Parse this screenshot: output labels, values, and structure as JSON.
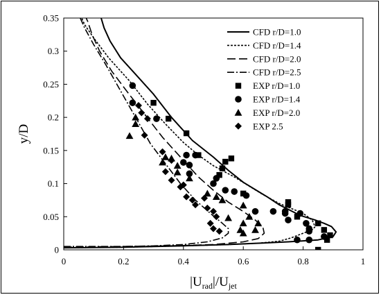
{
  "chart_data": {
    "type": "scatter",
    "title": "",
    "xlabel": {
      "base": "|U",
      "sub1": "rad",
      "mid": "|/U",
      "sub2": "jet"
    },
    "ylabel": "y/D",
    "xlim": [
      0,
      1
    ],
    "ylim": [
      0,
      0.35
    ],
    "x_ticks": [
      "0",
      "0.2",
      "0.4",
      "0.6",
      "0.8",
      "1"
    ],
    "y_ticks": [
      "0",
      "0.05",
      "0.1",
      "0.15",
      "0.2",
      "0.25",
      "0.3",
      "0.35"
    ],
    "grid": false,
    "legend_position": "top-right",
    "series": [
      {
        "name": "CFD r/D=1.0",
        "kind": "line",
        "dash": "solid",
        "points": [
          [
            0,
            0.003
          ],
          [
            0.2,
            0.004
          ],
          [
            0.4,
            0.006
          ],
          [
            0.55,
            0.008
          ],
          [
            0.65,
            0.01
          ],
          [
            0.75,
            0.012
          ],
          [
            0.85,
            0.015
          ],
          [
            0.9,
            0.02
          ],
          [
            0.91,
            0.027
          ],
          [
            0.895,
            0.035
          ],
          [
            0.87,
            0.04
          ],
          [
            0.84,
            0.045
          ],
          [
            0.79,
            0.052
          ],
          [
            0.72,
            0.068
          ],
          [
            0.68,
            0.08
          ],
          [
            0.6,
            0.102
          ],
          [
            0.55,
            0.12
          ],
          [
            0.5,
            0.14
          ],
          [
            0.43,
            0.165
          ],
          [
            0.36,
            0.2
          ],
          [
            0.3,
            0.235
          ],
          [
            0.24,
            0.265
          ],
          [
            0.19,
            0.29
          ],
          [
            0.155,
            0.315
          ],
          [
            0.135,
            0.335
          ],
          [
            0.125,
            0.35
          ]
        ]
      },
      {
        "name": "CFD r/D=1.4",
        "kind": "line",
        "dash": "short",
        "points": [
          [
            0,
            0.003
          ],
          [
            0.2,
            0.004
          ],
          [
            0.4,
            0.006
          ],
          [
            0.55,
            0.008
          ],
          [
            0.65,
            0.01
          ],
          [
            0.72,
            0.013
          ],
          [
            0.76,
            0.018
          ],
          [
            0.8,
            0.025
          ],
          [
            0.83,
            0.03
          ],
          [
            0.84,
            0.035
          ],
          [
            0.83,
            0.045
          ],
          [
            0.8,
            0.055
          ],
          [
            0.72,
            0.07
          ],
          [
            0.66,
            0.085
          ],
          [
            0.57,
            0.11
          ],
          [
            0.5,
            0.127
          ],
          [
            0.45,
            0.143
          ],
          [
            0.4,
            0.162
          ],
          [
            0.34,
            0.19
          ],
          [
            0.28,
            0.22
          ],
          [
            0.22,
            0.255
          ],
          [
            0.15,
            0.29
          ],
          [
            0.1,
            0.32
          ],
          [
            0.07,
            0.34
          ],
          [
            0.06,
            0.35
          ]
        ]
      },
      {
        "name": "CFD r/D=2.0",
        "kind": "line",
        "dash": "long",
        "points": [
          [
            0,
            0.004
          ],
          [
            0.2,
            0.005
          ],
          [
            0.35,
            0.006
          ],
          [
            0.5,
            0.008
          ],
          [
            0.6,
            0.012
          ],
          [
            0.65,
            0.017
          ],
          [
            0.67,
            0.025
          ],
          [
            0.665,
            0.035
          ],
          [
            0.64,
            0.045
          ],
          [
            0.6,
            0.058
          ],
          [
            0.55,
            0.072
          ],
          [
            0.5,
            0.09
          ],
          [
            0.45,
            0.11
          ],
          [
            0.39,
            0.14
          ],
          [
            0.33,
            0.17
          ],
          [
            0.27,
            0.205
          ],
          [
            0.21,
            0.24
          ],
          [
            0.16,
            0.27
          ],
          [
            0.12,
            0.3
          ],
          [
            0.095,
            0.325
          ],
          [
            0.08,
            0.345
          ],
          [
            0.075,
            0.35
          ]
        ]
      },
      {
        "name": "CFD r/D=2.5",
        "kind": "line",
        "dash": "dashdot",
        "points": [
          [
            0,
            0.005
          ],
          [
            0.2,
            0.005
          ],
          [
            0.3,
            0.006
          ],
          [
            0.4,
            0.008
          ],
          [
            0.48,
            0.012
          ],
          [
            0.53,
            0.018
          ],
          [
            0.55,
            0.025
          ],
          [
            0.55,
            0.032
          ],
          [
            0.53,
            0.04
          ],
          [
            0.49,
            0.055
          ],
          [
            0.44,
            0.075
          ],
          [
            0.39,
            0.1
          ],
          [
            0.34,
            0.13
          ],
          [
            0.29,
            0.16
          ],
          [
            0.24,
            0.2
          ],
          [
            0.19,
            0.24
          ],
          [
            0.14,
            0.28
          ],
          [
            0.1,
            0.31
          ],
          [
            0.07,
            0.335
          ],
          [
            0.055,
            0.35
          ]
        ]
      },
      {
        "name": "EXP r/D=1.0",
        "kind": "marker",
        "marker": "square",
        "points": [
          [
            0.3,
            0.222
          ],
          [
            0.35,
            0.198
          ],
          [
            0.41,
            0.176
          ],
          [
            0.45,
            0.143
          ],
          [
            0.56,
            0.138
          ],
          [
            0.54,
            0.133
          ],
          [
            0.53,
            0.123
          ],
          [
            0.52,
            0.113
          ],
          [
            0.6,
            0.085
          ],
          [
            0.75,
            0.072
          ],
          [
            0.75,
            0.068
          ],
          [
            0.78,
            0.05
          ],
          [
            0.85,
            0.04
          ],
          [
            0.87,
            0.03
          ],
          [
            0.89,
            0.022
          ],
          [
            0.88,
            0.015
          ],
          [
            0.85,
            0.0
          ]
        ]
      },
      {
        "name": "EXP r/D=1.4",
        "kind": "marker",
        "marker": "circle",
        "points": [
          [
            0.23,
            0.248
          ],
          [
            0.23,
            0.222
          ],
          [
            0.31,
            0.198
          ],
          [
            0.41,
            0.143
          ],
          [
            0.44,
            0.143
          ],
          [
            0.42,
            0.128
          ],
          [
            0.4,
            0.132
          ],
          [
            0.42,
            0.115
          ],
          [
            0.51,
            0.108
          ],
          [
            0.5,
            0.1
          ],
          [
            0.54,
            0.09
          ],
          [
            0.57,
            0.088
          ],
          [
            0.61,
            0.082
          ],
          [
            0.64,
            0.058
          ],
          [
            0.7,
            0.058
          ],
          [
            0.74,
            0.058
          ],
          [
            0.74,
            0.055
          ],
          [
            0.79,
            0.055
          ],
          [
            0.75,
            0.045
          ],
          [
            0.81,
            0.04
          ],
          [
            0.82,
            0.032
          ],
          [
            0.82,
            0.028
          ],
          [
            0.87,
            0.02
          ],
          [
            0.78,
            0.015
          ],
          [
            0.82,
            0.015
          ]
        ]
      },
      {
        "name": "EXP r/D=2.0",
        "kind": "marker",
        "marker": "triangle",
        "points": [
          [
            0.24,
            0.2
          ],
          [
            0.24,
            0.19
          ],
          [
            0.22,
            0.172
          ],
          [
            0.34,
            0.14
          ],
          [
            0.36,
            0.138
          ],
          [
            0.33,
            0.132
          ],
          [
            0.38,
            0.127
          ],
          [
            0.38,
            0.117
          ],
          [
            0.42,
            0.108
          ],
          [
            0.48,
            0.085
          ],
          [
            0.51,
            0.08
          ],
          [
            0.53,
            0.075
          ],
          [
            0.6,
            0.067
          ],
          [
            0.62,
            0.05
          ],
          [
            0.55,
            0.048
          ],
          [
            0.6,
            0.04
          ],
          [
            0.59,
            0.03
          ],
          [
            0.6,
            0.025
          ],
          [
            0.64,
            0.03
          ],
          [
            0.65,
            0.04
          ]
        ]
      },
      {
        "name": "EXP 2.5",
        "kind": "marker",
        "marker": "diamond",
        "points": [
          [
            0.25,
            0.218
          ],
          [
            0.26,
            0.207
          ],
          [
            0.28,
            0.198
          ],
          [
            0.27,
            0.173
          ],
          [
            0.33,
            0.148
          ],
          [
            0.36,
            0.135
          ],
          [
            0.34,
            0.118
          ],
          [
            0.36,
            0.105
          ],
          [
            0.39,
            0.095
          ],
          [
            0.4,
            0.098
          ],
          [
            0.41,
            0.08
          ],
          [
            0.43,
            0.075
          ],
          [
            0.44,
            0.068
          ],
          [
            0.47,
            0.078
          ],
          [
            0.48,
            0.063
          ],
          [
            0.5,
            0.058
          ],
          [
            0.51,
            0.05
          ],
          [
            0.49,
            0.04
          ],
          [
            0.5,
            0.032
          ],
          [
            0.52,
            0.028
          ]
        ]
      }
    ]
  }
}
